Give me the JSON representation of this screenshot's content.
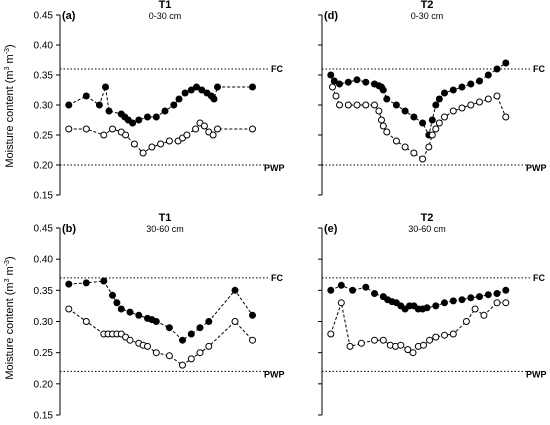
{
  "y_axis_label": {
    "main": "Moisture content (m",
    "sup1": "3",
    "mid": " m",
    "sup2": "-3",
    "end": ")"
  },
  "chart_data": [
    {
      "type": "line",
      "panel": "(a)",
      "title": "T1",
      "subtitle": "0-30 cm",
      "ylim": [
        0.15,
        0.45
      ],
      "yticks": [
        "0.15",
        "0.20",
        "0.25",
        "0.30",
        "0.35",
        "0.40",
        "0.45"
      ],
      "xlim": [
        0,
        24
      ],
      "fc": 0.36,
      "pwp": 0.2,
      "fc_label": "FC",
      "pwp_label": "PWP",
      "series": [
        {
          "marker": "filled",
          "x": [
            1,
            3,
            4.5,
            5.2,
            5.6,
            7,
            7.4,
            7.8,
            8.3,
            9,
            10,
            11,
            12,
            13,
            13.6,
            14.3,
            15,
            15.6,
            16.2,
            16.8,
            17.3,
            17.6,
            18,
            22
          ],
          "y": [
            0.3,
            0.315,
            0.3,
            0.33,
            0.29,
            0.285,
            0.28,
            0.275,
            0.27,
            0.275,
            0.28,
            0.28,
            0.29,
            0.3,
            0.31,
            0.32,
            0.325,
            0.33,
            0.325,
            0.32,
            0.315,
            0.31,
            0.33,
            0.33
          ]
        },
        {
          "marker": "open",
          "x": [
            1,
            3,
            5,
            6,
            7,
            7.5,
            8.5,
            9.5,
            10.5,
            11.5,
            12.5,
            13.5,
            14,
            14.5,
            15.5,
            16,
            16.5,
            17,
            17.5,
            18,
            22
          ],
          "y": [
            0.26,
            0.26,
            0.25,
            0.26,
            0.255,
            0.25,
            0.235,
            0.22,
            0.23,
            0.235,
            0.24,
            0.24,
            0.245,
            0.25,
            0.26,
            0.27,
            0.265,
            0.255,
            0.25,
            0.26,
            0.26
          ]
        }
      ]
    },
    {
      "type": "line",
      "panel": "(d)",
      "title": "T2",
      "subtitle": "0-30 cm",
      "ylim": [
        0.15,
        0.45
      ],
      "yticks": [
        "0.15",
        "0.20",
        "0.25",
        "0.30",
        "0.35",
        "0.40",
        "0.45"
      ],
      "xlim": [
        0,
        24
      ],
      "fc": 0.36,
      "pwp": 0.2,
      "fc_label": "FC",
      "pwp_label": "PWP",
      "series": [
        {
          "marker": "filled",
          "x": [
            1,
            1.4,
            2,
            3,
            4,
            5,
            6,
            6.5,
            6.8,
            7,
            7.4,
            8.5,
            9.5,
            10.5,
            11.5,
            12.2,
            12.6,
            13,
            13.4,
            14,
            15,
            16,
            17,
            18,
            19,
            20,
            21
          ],
          "y": [
            0.35,
            0.34,
            0.335,
            0.338,
            0.342,
            0.338,
            0.335,
            0.332,
            0.33,
            0.325,
            0.31,
            0.3,
            0.29,
            0.28,
            0.27,
            0.25,
            0.275,
            0.3,
            0.31,
            0.32,
            0.325,
            0.33,
            0.335,
            0.34,
            0.35,
            0.36,
            0.37
          ]
        },
        {
          "marker": "open",
          "x": [
            1.2,
            1.6,
            2,
            3,
            4,
            5,
            6,
            6.5,
            6.8,
            7,
            7.4,
            8.5,
            9.5,
            10.5,
            11.5,
            12.2,
            12.6,
            13,
            13.4,
            14,
            15,
            16,
            17,
            18,
            19,
            20,
            21
          ],
          "y": [
            0.33,
            0.315,
            0.3,
            0.3,
            0.3,
            0.3,
            0.3,
            0.29,
            0.275,
            0.265,
            0.255,
            0.24,
            0.23,
            0.22,
            0.21,
            0.23,
            0.25,
            0.26,
            0.27,
            0.28,
            0.29,
            0.295,
            0.3,
            0.305,
            0.31,
            0.315,
            0.28
          ]
        }
      ]
    },
    {
      "type": "line",
      "panel": "(b)",
      "title": "T1",
      "subtitle": "30-60 cm",
      "ylim": [
        0.15,
        0.45
      ],
      "yticks": [
        "0.15",
        "0.20",
        "0.25",
        "0.30",
        "0.35",
        "0.40",
        "0.45"
      ],
      "xlim": [
        0,
        24
      ],
      "fc": 0.37,
      "pwp": 0.22,
      "fc_label": "FC",
      "pwp_label": "PWP",
      "series": [
        {
          "marker": "filled",
          "x": [
            1,
            3,
            5,
            6,
            6.5,
            7,
            8,
            9,
            10,
            10.5,
            11,
            12.5,
            14,
            15,
            16,
            17,
            20,
            22
          ],
          "y": [
            0.36,
            0.362,
            0.365,
            0.342,
            0.33,
            0.32,
            0.315,
            0.31,
            0.305,
            0.303,
            0.3,
            0.29,
            0.27,
            0.28,
            0.29,
            0.3,
            0.35,
            0.31
          ]
        },
        {
          "marker": "open",
          "x": [
            1,
            3,
            5,
            5.5,
            6,
            6.5,
            7,
            7.5,
            8,
            9,
            9.5,
            10,
            11,
            12.5,
            14,
            15,
            16,
            17,
            20,
            22
          ],
          "y": [
            0.32,
            0.3,
            0.28,
            0.28,
            0.28,
            0.28,
            0.28,
            0.275,
            0.27,
            0.265,
            0.262,
            0.26,
            0.25,
            0.245,
            0.23,
            0.24,
            0.25,
            0.26,
            0.3,
            0.27
          ]
        }
      ]
    },
    {
      "type": "line",
      "panel": "(e)",
      "title": "T2",
      "subtitle": "30-60 cm",
      "ylim": [
        0.15,
        0.45
      ],
      "yticks": [
        "0.15",
        "0.20",
        "0.25",
        "0.30",
        "0.35",
        "0.40",
        "0.45"
      ],
      "xlim": [
        0,
        24
      ],
      "fc": 0.37,
      "pwp": 0.22,
      "fc_label": "FC",
      "pwp_label": "PWP",
      "series": [
        {
          "marker": "filled",
          "x": [
            1,
            2.2,
            3.5,
            5,
            6,
            7,
            7.5,
            8,
            8.5,
            9,
            9.5,
            10,
            10.5,
            11,
            11.5,
            12,
            13,
            14,
            15,
            16,
            17,
            18,
            19,
            20,
            21
          ],
          "y": [
            0.35,
            0.358,
            0.35,
            0.355,
            0.345,
            0.34,
            0.335,
            0.332,
            0.33,
            0.325,
            0.32,
            0.325,
            0.325,
            0.32,
            0.32,
            0.322,
            0.325,
            0.33,
            0.333,
            0.335,
            0.338,
            0.34,
            0.343,
            0.345,
            0.35
          ]
        },
        {
          "marker": "open",
          "x": [
            1,
            2.2,
            3.2,
            4.5,
            6,
            7,
            7.8,
            8.4,
            9,
            9.8,
            10.4,
            11,
            11.6,
            12.3,
            13,
            14,
            15,
            16.5,
            17.5,
            18.5,
            20,
            21
          ],
          "y": [
            0.28,
            0.33,
            0.26,
            0.265,
            0.27,
            0.27,
            0.262,
            0.26,
            0.262,
            0.255,
            0.25,
            0.26,
            0.262,
            0.27,
            0.275,
            0.278,
            0.28,
            0.3,
            0.32,
            0.31,
            0.33,
            0.33
          ]
        }
      ]
    }
  ]
}
